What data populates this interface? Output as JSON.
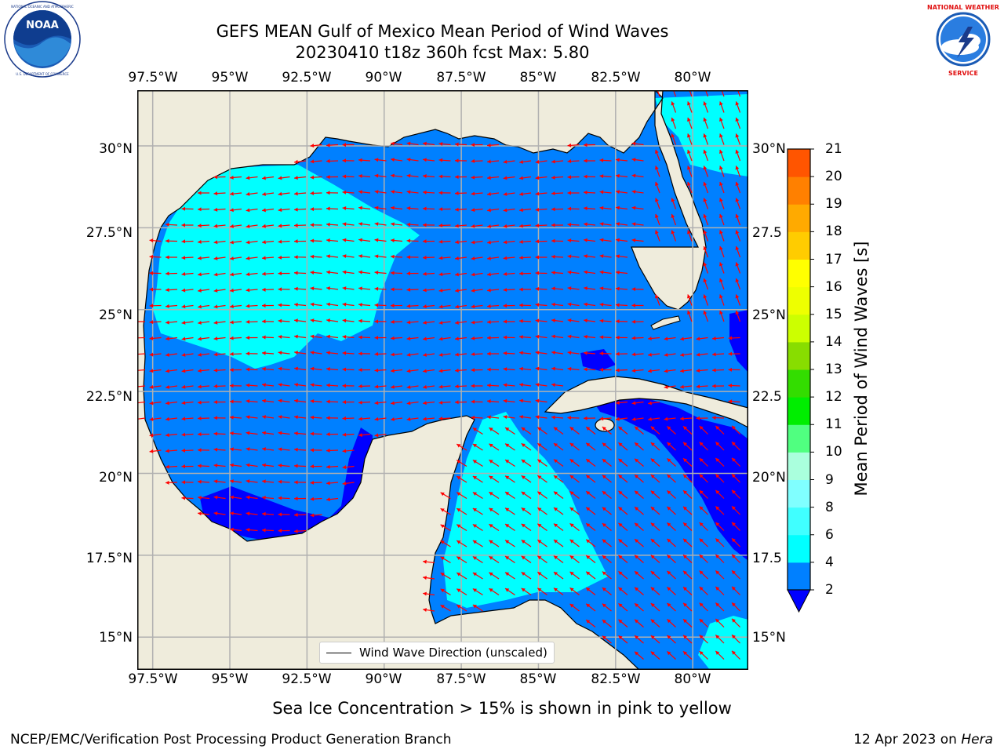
{
  "header": {
    "title_line1": "GEFS MEAN Gulf of Mexico Mean Period of Wind Waves",
    "title_line2": "20230410 t18z 360h fcst   Max: 5.80"
  },
  "logos": {
    "left_text": "NOAA",
    "left_ring_text": "NATIONAL OCEANIC AND ATMOSPHERIC ADMINISTRATION · U.S. DEPARTMENT OF COMMERCE",
    "right_ring_text": "NATIONAL WEATHER SERVICE"
  },
  "map": {
    "lon_ticks": [
      "97.5°W",
      "95°W",
      "92.5°W",
      "90°W",
      "87.5°W",
      "85°W",
      "82.5°W",
      "80°W"
    ],
    "lat_ticks_left": [
      "30°N",
      "27.5°N",
      "25°N",
      "22.5°N",
      "20°N",
      "17.5°N",
      "15°N"
    ],
    "lat_ticks_right": [
      "30°N",
      "27.5",
      "25°N",
      "22.5",
      "20°N",
      "17.5",
      "15°N"
    ],
    "lon_range": [
      -98,
      -78.2
    ],
    "lat_range": [
      14.0,
      31.7
    ],
    "legend_label": "Wind Wave Direction (unscaled)",
    "land_color": "#efecdc",
    "arrow_color": "#ff0000",
    "grid_color": "#b0b0b0",
    "field_summary": "Mean wind wave period mostly 2-4 s over the Gulf and Caribbean; 4-6 s patches in the NW Gulf, Florida west coast and Yucatan Channel; below 2 s in the Bay of Campeche, along Cuba and near Honduras."
  },
  "colorbar": {
    "label": "Mean Period of Wind Waves [s]",
    "ticks": [
      "2",
      "4",
      "6",
      "8",
      "9",
      "10",
      "11",
      "12",
      "13",
      "14",
      "15",
      "16",
      "17",
      "18",
      "19",
      "20",
      "21"
    ],
    "colors": [
      "#0080ff",
      "#00ffff",
      "#40ffff",
      "#80ffff",
      "#aaffdd",
      "#50ff80",
      "#00ee00",
      "#33dd00",
      "#88dd00",
      "#ccff00",
      "#eeff00",
      "#ffff00",
      "#ffcc00",
      "#ffaa00",
      "#ff8000",
      "#ff5500",
      "#ff2200",
      "#ff0000"
    ],
    "under_color": "#0000ff"
  },
  "notes": {
    "sea_ice": "Sea Ice Concentration > 15% is shown in pink to yellow"
  },
  "footer": {
    "left": "NCEP/EMC/Verification Post Processing Product Generation Branch",
    "right_date": "12 Apr 2023 on",
    "right_host": "Hera"
  }
}
